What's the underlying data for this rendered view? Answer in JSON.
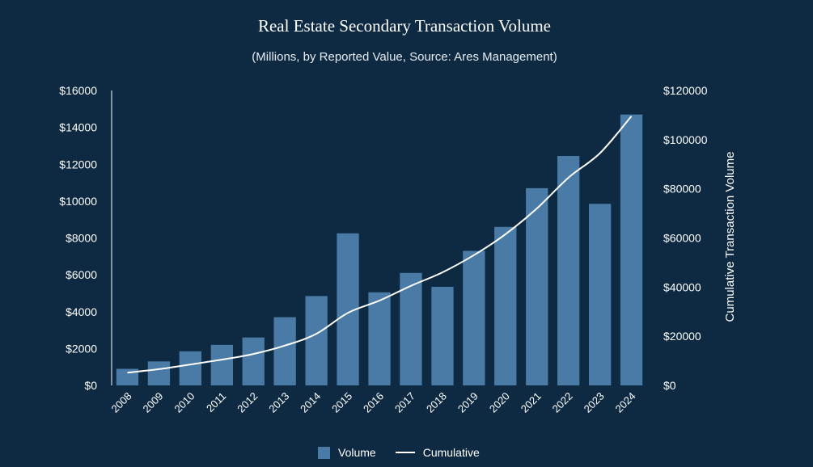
{
  "chart_data": {
    "type": "bar",
    "title": "Real Estate Secondary Transaction Volume",
    "subtitle": "(Millions, by Reported Value, Source: Ares Management)",
    "categories": [
      "2008",
      "2009",
      "2010",
      "2011",
      "2012",
      "2013",
      "2014",
      "2015",
      "2016",
      "2017",
      "2018",
      "2019",
      "2020",
      "2021",
      "2022",
      "2023",
      "2024"
    ],
    "series": [
      {
        "name": "Volume",
        "type": "bar",
        "axis": "left",
        "color": "#4a7aa6",
        "values": [
          900,
          1300,
          1850,
          2200,
          2600,
          3700,
          4850,
          8250,
          5050,
          6100,
          5350,
          7300,
          8600,
          10700,
          12450,
          9850,
          14700
        ]
      },
      {
        "name": "Cumulative",
        "type": "line",
        "axis": "right",
        "color": "#ffffff",
        "values": [
          5200,
          6600,
          8500,
          10500,
          12800,
          16200,
          21000,
          29500,
          34500,
          40500,
          46000,
          53000,
          61500,
          72000,
          84500,
          94500,
          109500
        ]
      }
    ],
    "y_left": {
      "ylim": [
        0,
        16000
      ],
      "ticks": [
        0,
        2000,
        4000,
        6000,
        8000,
        10000,
        12000,
        14000,
        16000
      ],
      "tick_labels": [
        "$0",
        "$2000",
        "$4000",
        "$6000",
        "$8000",
        "$10000",
        "$12000",
        "$14000",
        "$16000"
      ]
    },
    "y_right": {
      "label": "Cumulative Transaction Volume",
      "ylim": [
        0,
        120000
      ],
      "ticks": [
        0,
        20000,
        40000,
        60000,
        80000,
        100000,
        120000
      ],
      "tick_labels": [
        "$0",
        "$20000",
        "$40000",
        "$60000",
        "$80000",
        "$100000",
        "$120000"
      ]
    },
    "grid": false,
    "legend_position": "bottom-center"
  },
  "legend": {
    "volume_label": "Volume",
    "cumulative_label": "Cumulative"
  }
}
